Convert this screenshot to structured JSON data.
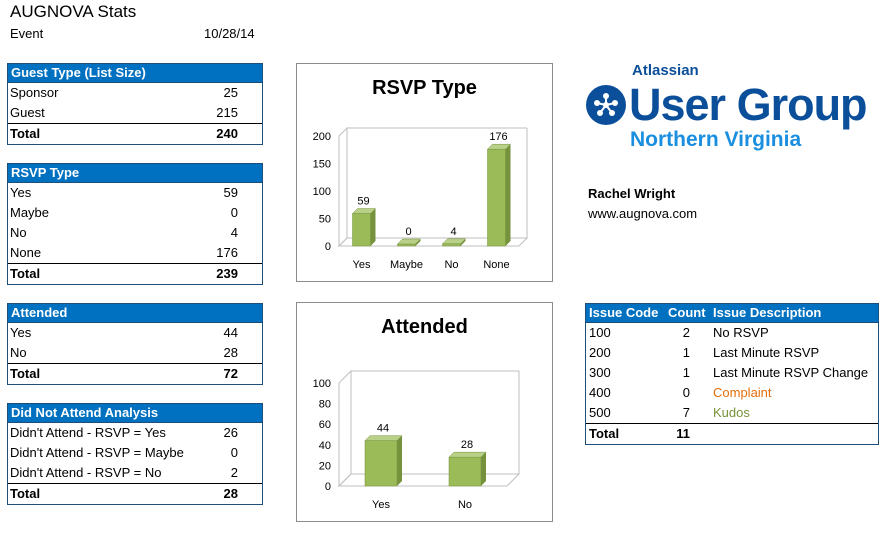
{
  "header": {
    "title": "AUGNOVA Stats",
    "event_label": "Event",
    "event_date": "10/28/14"
  },
  "guest_type": {
    "title": "Guest Type (List Size)",
    "rows": [
      {
        "label": "Sponsor",
        "value": "25"
      },
      {
        "label": "Guest",
        "value": "215"
      }
    ],
    "total_label": "Total",
    "total_value": "240"
  },
  "rsvp_type": {
    "title": "RSVP Type",
    "rows": [
      {
        "label": "Yes",
        "value": "59"
      },
      {
        "label": "Maybe",
        "value": "0"
      },
      {
        "label": "No",
        "value": "4"
      },
      {
        "label": "None",
        "value": "176"
      }
    ],
    "total_label": "Total",
    "total_value": "239"
  },
  "attended": {
    "title": "Attended",
    "rows": [
      {
        "label": "Yes",
        "value": "44"
      },
      {
        "label": "No",
        "value": "28"
      }
    ],
    "total_label": "Total",
    "total_value": "72"
  },
  "dna": {
    "title": "Did Not Attend Analysis",
    "rows": [
      {
        "label": "Didn't Attend - RSVP = Yes",
        "value": "26"
      },
      {
        "label": "Didn't Attend - RSVP = Maybe",
        "value": "0"
      },
      {
        "label": "Didn't Attend - RSVP = No",
        "value": "2"
      }
    ],
    "total_label": "Total",
    "total_value": "28"
  },
  "logo": {
    "atlassian": "Atlassian",
    "user_group": "User Group",
    "region": "Northern Virginia"
  },
  "contact": {
    "name": "Rachel Wright",
    "website": "www.augnova.com"
  },
  "issues": {
    "headers": {
      "code": "Issue Code",
      "count": "Count",
      "desc": "Issue Description"
    },
    "rows": [
      {
        "code": "100",
        "count": "2",
        "desc": "No RSVP"
      },
      {
        "code": "200",
        "count": "1",
        "desc": "Last Minute RSVP"
      },
      {
        "code": "300",
        "count": "1",
        "desc": "Last Minute RSVP Change"
      },
      {
        "code": "400",
        "count": "0",
        "desc": "Complaint"
      },
      {
        "code": "500",
        "count": "7",
        "desc": "Kudos"
      }
    ],
    "total_label": "Total",
    "total_value": "11"
  },
  "colors": {
    "header_blue": "#0070c0",
    "bar_green": "#9bbb59",
    "complaint": "#e46c0a",
    "kudos": "#77933c",
    "logo_blue": "#0b4f9a",
    "logo_light_blue": "#1a8fe0"
  },
  "chart_data": [
    {
      "type": "bar",
      "title": "RSVP Type",
      "categories": [
        "Yes",
        "Maybe",
        "No",
        "None"
      ],
      "values": [
        59,
        0,
        4,
        176
      ],
      "ylim": [
        0,
        200
      ],
      "yticks": [
        0,
        50,
        100,
        150,
        200
      ],
      "data_labels": true,
      "style": "3d",
      "grid": false,
      "legend": "none"
    },
    {
      "type": "bar",
      "title": "Attended",
      "categories": [
        "Yes",
        "No"
      ],
      "values": [
        44,
        28
      ],
      "ylim": [
        0,
        100
      ],
      "yticks": [
        0,
        20,
        40,
        60,
        80,
        100
      ],
      "data_labels": true,
      "style": "3d",
      "grid": false,
      "legend": "none"
    }
  ]
}
